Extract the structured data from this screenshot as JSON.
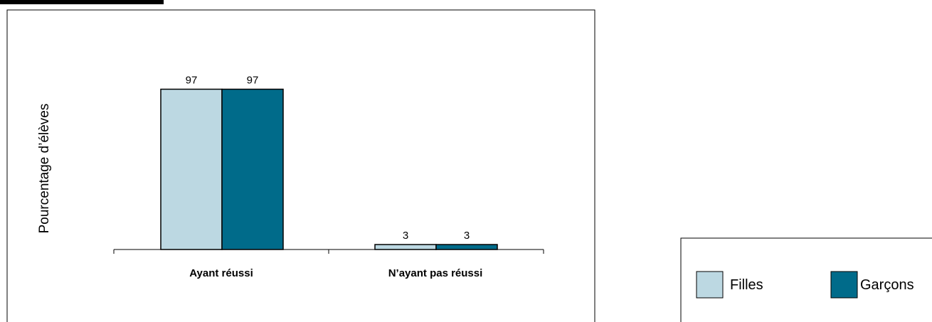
{
  "chart_data": {
    "type": "bar",
    "categories": [
      "Ayant réussi",
      "N’ayant pas réussi"
    ],
    "series": [
      {
        "name": "Filles",
        "values": [
          97,
          3
        ],
        "color": "#bcd8e2"
      },
      {
        "name": "Garçons",
        "values": [
          97,
          3
        ],
        "color": "#006b8a"
      }
    ],
    "xlabel": "",
    "ylabel": "Pourcentage d’élèves",
    "ylim": [
      0,
      100
    ],
    "grid": false,
    "data_labels": true,
    "legend_position": "bottom-right"
  }
}
